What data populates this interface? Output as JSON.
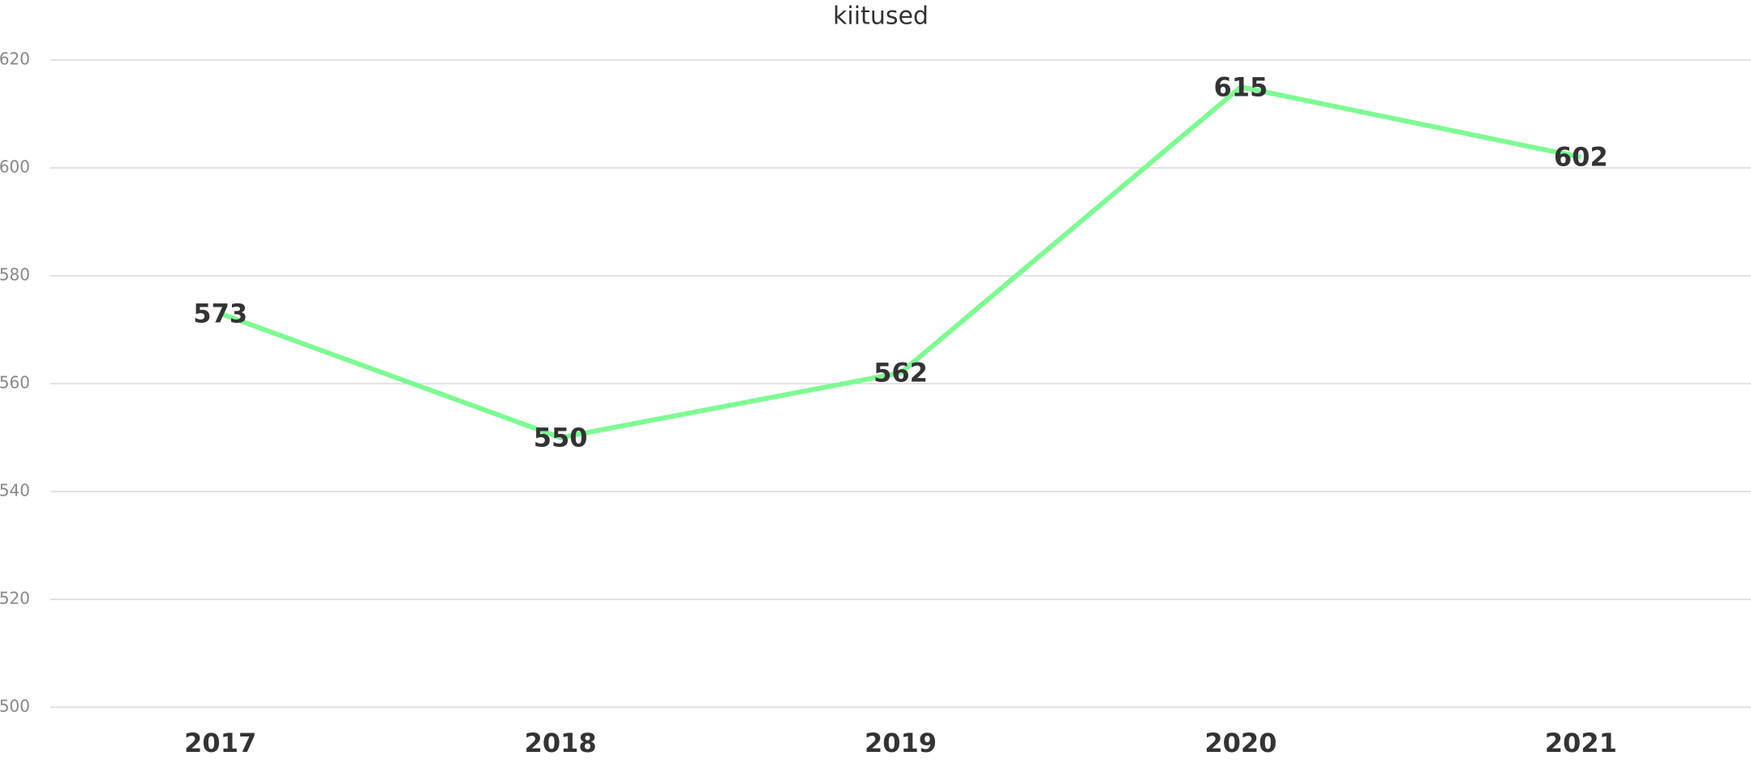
{
  "chart_data": {
    "type": "line",
    "title": "kiitused",
    "categories": [
      "2017",
      "2018",
      "2019",
      "2020",
      "2021"
    ],
    "series": [
      {
        "name": "kiitused",
        "color": "#7ffa94",
        "values": [
          573,
          550,
          562,
          615,
          602
        ]
      }
    ],
    "ylim": [
      500,
      620
    ],
    "yticks": [
      500,
      520,
      540,
      560,
      580,
      600,
      620
    ],
    "grid": true
  }
}
